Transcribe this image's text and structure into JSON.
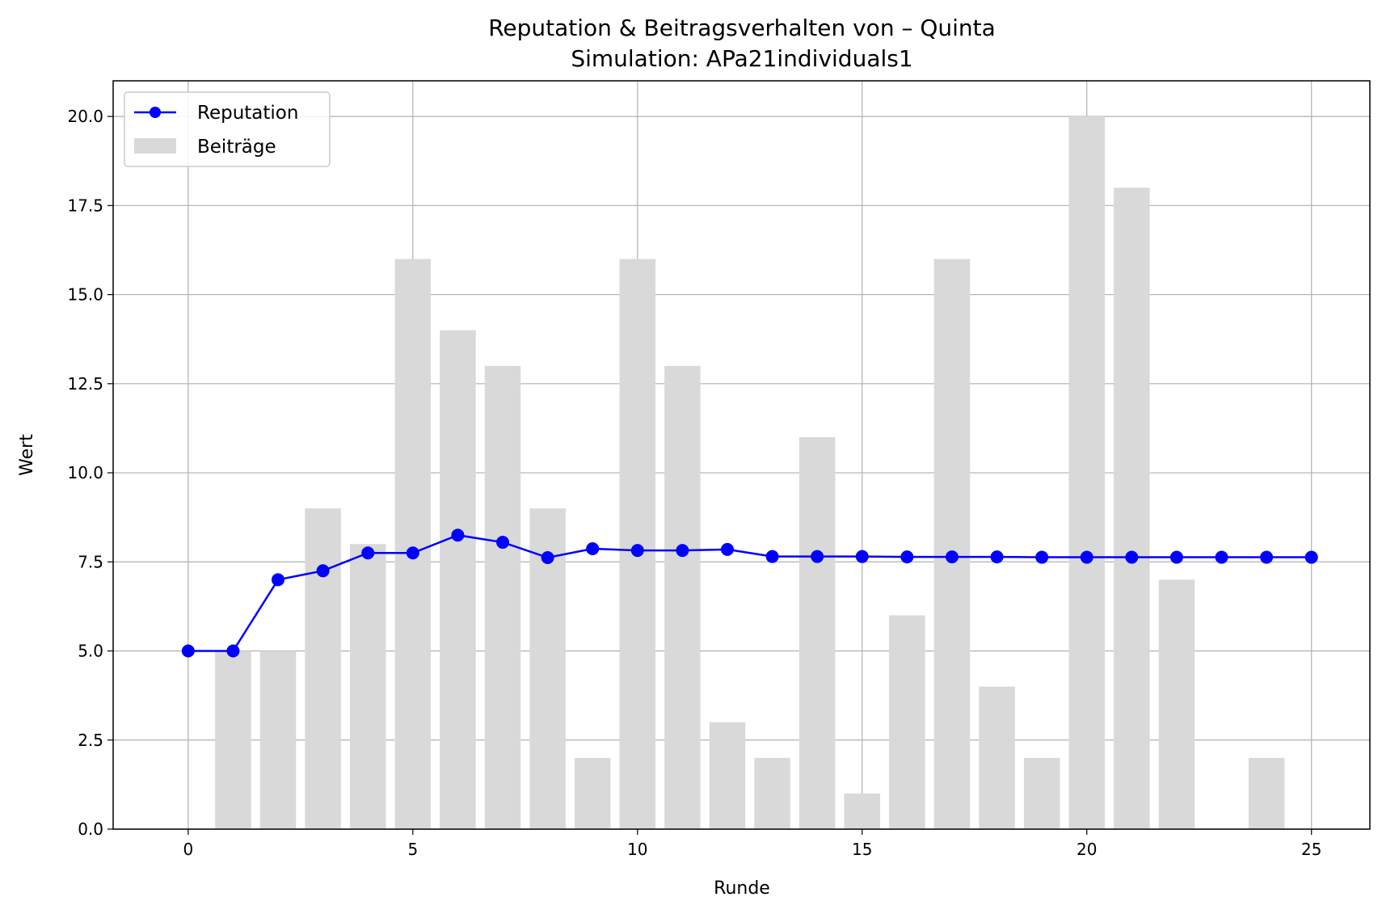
{
  "chart_data": {
    "type": "bar+line",
    "title": "Reputation & Beitragsverhalten von – Quinta",
    "subtitle": "Simulation: APa21individuals1",
    "xlabel": "Runde",
    "ylabel": "Wert",
    "xlim": [
      -1.67,
      26.3
    ],
    "ylim": [
      0,
      21
    ],
    "xticks": [
      0,
      5,
      10,
      15,
      20,
      25
    ],
    "yticks": [
      0.0,
      2.5,
      5.0,
      7.5,
      10.0,
      12.5,
      15.0,
      17.5,
      20.0
    ],
    "grid": true,
    "legend_position": "upper left",
    "series": [
      {
        "name": "Reputation",
        "kind": "line",
        "marker": "circle",
        "color": "#0000ff",
        "x": [
          0,
          1,
          2,
          3,
          4,
          5,
          6,
          7,
          8,
          9,
          10,
          11,
          12,
          13,
          14,
          15,
          16,
          17,
          18,
          19,
          20,
          21,
          22,
          23,
          24,
          25
        ],
        "values": [
          5.0,
          5.0,
          7.0,
          7.25,
          7.75,
          7.75,
          8.25,
          8.05,
          7.62,
          7.87,
          7.82,
          7.82,
          7.85,
          7.65,
          7.65,
          7.65,
          7.64,
          7.64,
          7.64,
          7.63,
          7.63,
          7.63,
          7.63,
          7.63,
          7.63,
          7.63
        ]
      },
      {
        "name": "Beiträge",
        "kind": "bar",
        "color": "#d9d9d9",
        "x": [
          1,
          2,
          3,
          4,
          5,
          6,
          7,
          8,
          9,
          10,
          11,
          12,
          13,
          14,
          15,
          16,
          17,
          18,
          19,
          20,
          21,
          22,
          23,
          24
        ],
        "values": [
          5,
          5,
          9,
          8,
          16,
          14,
          13,
          9,
          2,
          16,
          13,
          3,
          2,
          11,
          1,
          6,
          16,
          4,
          2,
          20,
          18,
          7,
          0,
          2
        ]
      }
    ]
  }
}
